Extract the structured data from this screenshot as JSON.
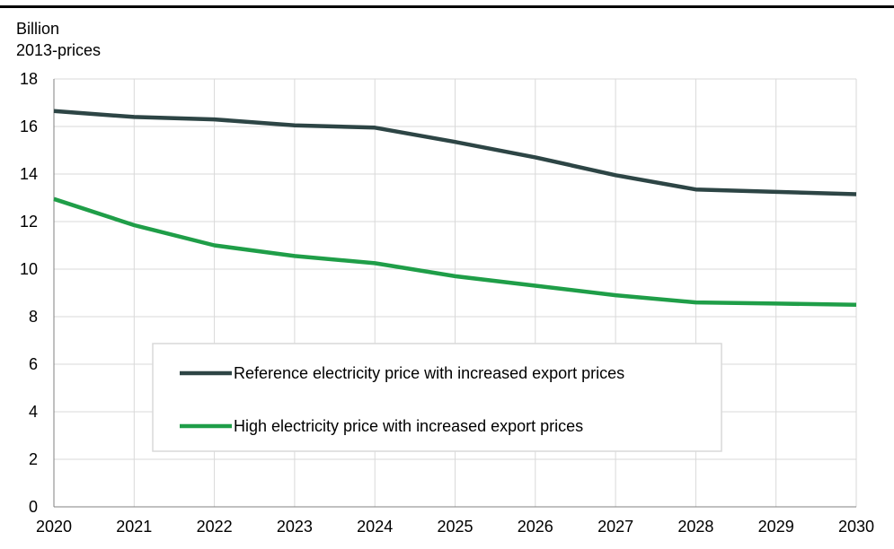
{
  "chart_data": {
    "type": "line",
    "title": "",
    "ylabel_line1": "Billion",
    "ylabel_line2": "2013-prices",
    "xlabel": "",
    "x": [
      "2020",
      "2021",
      "2022",
      "2023",
      "2024",
      "2025",
      "2026",
      "2027",
      "2028",
      "2029",
      "2030"
    ],
    "ylim": [
      0,
      18
    ],
    "yticks": [
      "0",
      "2",
      "4",
      "6",
      "8",
      "10",
      "12",
      "14",
      "16",
      "18"
    ],
    "grid": true,
    "legend_position": "bottom-left, inside plot area",
    "series": [
      {
        "name": "Reference electricity price with increased export prices",
        "color": "#2d4545",
        "values": [
          16.65,
          16.4,
          16.3,
          16.05,
          15.95,
          15.35,
          14.7,
          13.95,
          13.35,
          13.25,
          13.15
        ]
      },
      {
        "name": "High electricity price with increased export prices",
        "color": "#1f9e48",
        "values": [
          12.95,
          11.85,
          11.0,
          10.55,
          10.25,
          9.7,
          9.3,
          8.9,
          8.6,
          8.55,
          8.5
        ]
      }
    ]
  }
}
